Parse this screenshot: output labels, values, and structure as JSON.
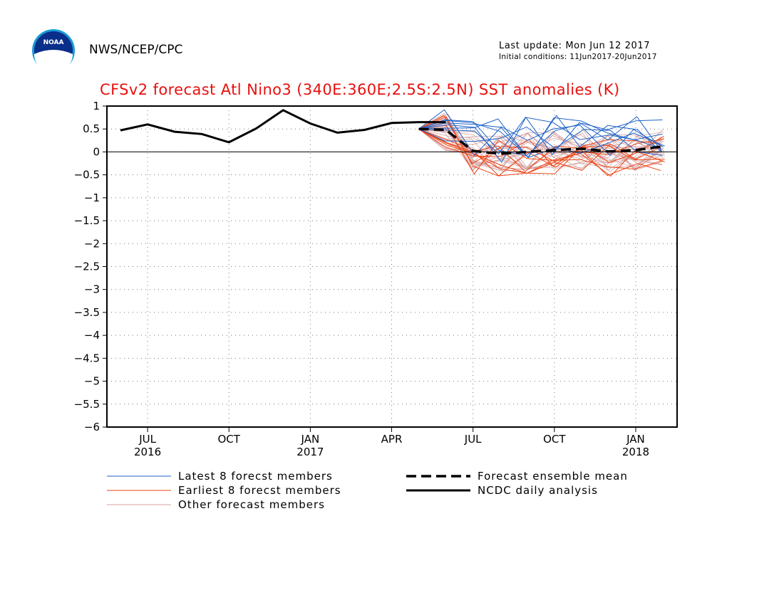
{
  "header": {
    "org": "NWS/NCEP/CPC",
    "last_update": "Last update: Mon Jun 12 2017",
    "initial_conditions": "Initial conditions: 11Jun2017-20Jun2017",
    "logo_text": "NOAA"
  },
  "colors": {
    "title": "#e8100e",
    "latest": "#1f63c8",
    "earliest": "#ee4414",
    "other": "#d4a0a0",
    "mean": "#000000",
    "observed": "#000000"
  },
  "chart_data": {
    "type": "line",
    "title": "CFSv2 forecast Atl Nino3 (340E:360E;2.5S:2.5N) SST anomalies (K)",
    "ylim": [
      -6,
      1
    ],
    "yticks": [
      1,
      0.5,
      0,
      -0.5,
      -1,
      -1.5,
      -2,
      -2.5,
      -3,
      -3.5,
      -4,
      -4.5,
      -5,
      -5.5,
      -6
    ],
    "xticks": [
      {
        "label": "JUL",
        "year": "2016",
        "month": "2016-07"
      },
      {
        "label": "OCT",
        "year": "",
        "month": "2016-10"
      },
      {
        "label": "JAN",
        "year": "2017",
        "month": "2017-01"
      },
      {
        "label": "APR",
        "year": "",
        "month": "2017-04"
      },
      {
        "label": "JUL",
        "year": "",
        "month": "2017-07"
      },
      {
        "label": "OCT",
        "year": "",
        "month": "2017-10"
      },
      {
        "label": "JAN",
        "year": "2018",
        "month": "2018-01"
      }
    ],
    "grid": true,
    "zero_line": true,
    "observed": {
      "name": "NCDC daily analysis",
      "x": [
        "2016-06",
        "2016-07",
        "2016-08",
        "2016-09",
        "2016-10",
        "2016-11",
        "2016-12",
        "2017-01",
        "2017-02",
        "2017-03",
        "2017-04",
        "2017-05",
        "2017-06"
      ],
      "y": [
        0.47,
        0.6,
        0.44,
        0.39,
        0.21,
        0.51,
        0.91,
        0.62,
        0.42,
        0.48,
        0.63,
        0.65,
        0.65
      ]
    },
    "ensemble_mean": {
      "name": "Forecast ensemble mean",
      "x": [
        "2017-05",
        "2017-06",
        "2017-07",
        "2017-08",
        "2017-09",
        "2017-10",
        "2017-11",
        "2017-12",
        "2018-01",
        "2018-02"
      ],
      "y": [
        0.5,
        0.48,
        0.02,
        -0.04,
        0.0,
        0.04,
        0.07,
        0.01,
        0.04,
        0.12
      ]
    },
    "member_groups": [
      {
        "name": "Latest 8 forecst members",
        "color_key": "latest",
        "count": 8,
        "spread": 0.5,
        "bias": 0.28
      },
      {
        "name": "Earliest 8 forecst members",
        "color_key": "earliest",
        "count": 8,
        "spread": 0.42,
        "bias": -0.12
      },
      {
        "name": "Other forecast members",
        "color_key": "other",
        "count": 24,
        "spread": 0.45,
        "bias": 0.0
      }
    ],
    "legend": [
      {
        "label": "Latest 8 forecst members",
        "style": "latest"
      },
      {
        "label": "Earliest 8 forecst members",
        "style": "earliest"
      },
      {
        "label": "Other forecast members",
        "style": "other"
      },
      {
        "label": "Forecast ensemble mean",
        "style": "mean"
      },
      {
        "label": "NCDC daily analysis",
        "style": "observed"
      }
    ]
  }
}
